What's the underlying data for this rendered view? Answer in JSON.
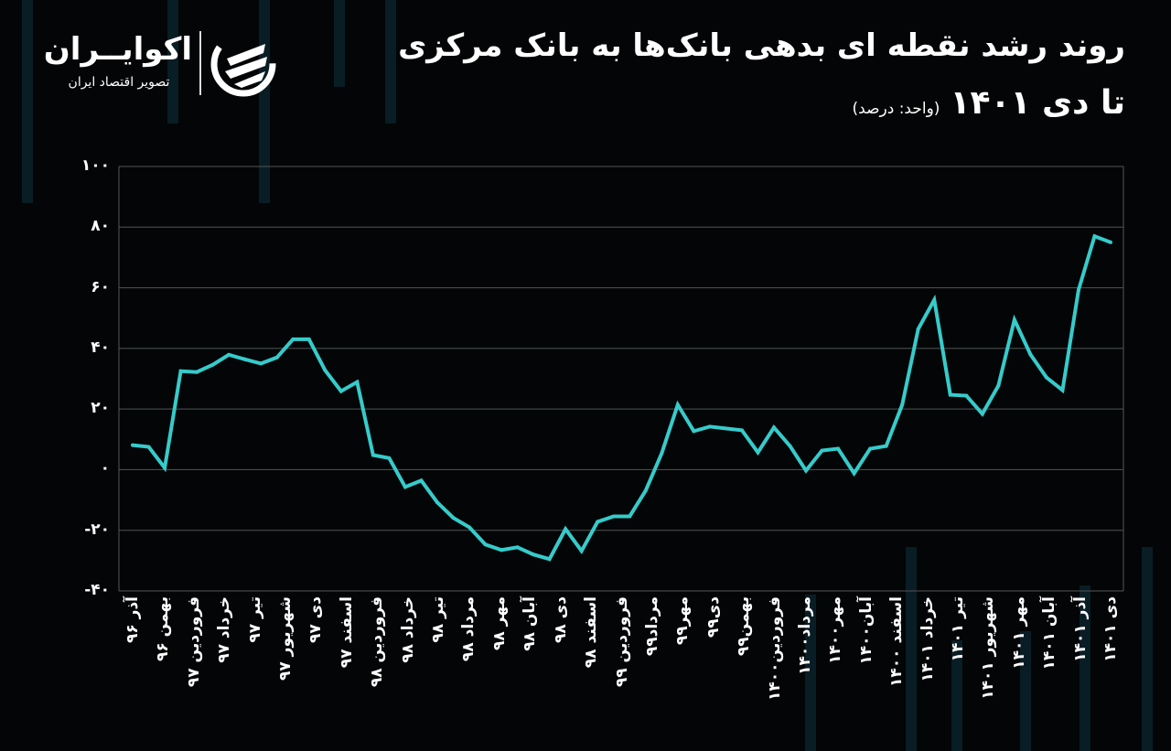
{
  "header": {
    "title": "روند رشد نقطه ای بدهی بانک‌ها به بانک مرکزی",
    "subtitle": "تا دی ۱۴۰۱",
    "unit": "(واحد: درصد)"
  },
  "logo": {
    "name": "اکوایــران",
    "tagline": "تصویر اقتصاد ایران"
  },
  "colors": {
    "line": "#36cbcb",
    "background": "#030506",
    "grid": "#555555"
  },
  "chart_data": {
    "type": "line",
    "title": "روند رشد نقطه ای بدهی بانک‌ها به بانک مرکزی",
    "ylim": [
      -40,
      100
    ],
    "grid": true,
    "y_ticks": [
      {
        "value": 100,
        "label": "۱۰۰"
      },
      {
        "value": 80,
        "label": "۸۰"
      },
      {
        "value": 60,
        "label": "۶۰"
      },
      {
        "value": 40,
        "label": "۴۰"
      },
      {
        "value": 20,
        "label": "۲۰"
      },
      {
        "value": 0,
        "label": "۰"
      },
      {
        "value": -20,
        "label": "-۲۰"
      },
      {
        "value": -40,
        "label": "-۴۰"
      }
    ],
    "x_tick_labels": [
      "آذر ۹۶",
      "بهمن ۹۶",
      "فروردین ۹۷",
      "خرداد ۹۷",
      "تیر ۹۷",
      "شهریور ۹۷",
      "دی ۹۷",
      "اسفند ۹۷",
      "فروردین ۹۸",
      "خرداد ۹۸",
      "تیر ۹۸",
      "مرداد ۹۸",
      "مهر ۹۸",
      "آبان ۹۸",
      "دی ۹۸",
      "اسفند ۹۸",
      "فروردین ۹۹",
      "مرداد۹۹",
      "مهر۹۹",
      "دی۹۹",
      "بهمن۹۹",
      "فروردین۱۴۰۰",
      "مرداد۱۴۰۰",
      "مهر۱۴۰۰",
      "آبان۱۴۰۰",
      "اسفند ۱۴۰۰",
      "خرداد ۱۴۰۱",
      "تیر ۱۴۰۱",
      "شهریور ۱۴۰۱",
      "مهر ۱۴۰۱",
      "آبان ۱۴۰۱",
      "آذر ۱۴۰۱",
      "دی ۱۴۰۱"
    ],
    "values": [
      8.1,
      7.5,
      0.6,
      32.5,
      32.2,
      34.6,
      37.9,
      36.4,
      35,
      37,
      43,
      43,
      32.8,
      25.9,
      28.9,
      4.8,
      3.8,
      -5.7,
      -3.6,
      -10.8,
      -15.9,
      -19,
      -24.7,
      -26.5,
      -25.6,
      -28,
      -29.5,
      -19.6,
      -26.8,
      -17.2,
      -15.4,
      -15.4,
      -6.9,
      5.4,
      21.4,
      12.7,
      14.2,
      13.6,
      13,
      5.7,
      13.9,
      7.8,
      -0.3,
      6.3,
      6.9,
      -1.2,
      6.9,
      7.8,
      21.4,
      46.4,
      56,
      24.7,
      24.4,
      18.4,
      27.7,
      49.4,
      38,
      30.4,
      26.2,
      59.3,
      77,
      75
    ]
  }
}
